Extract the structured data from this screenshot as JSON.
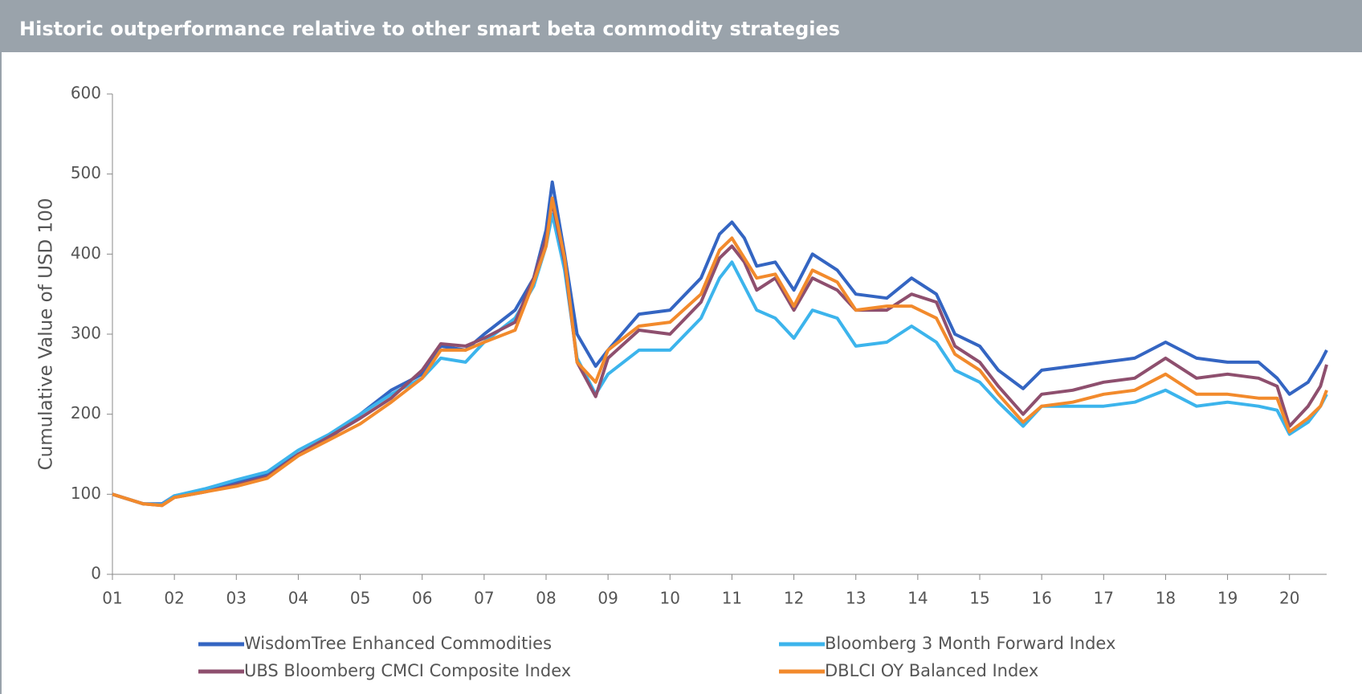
{
  "chart_data": {
    "type": "line",
    "title": "Historic outperformance relative to other smart beta commodity strategies",
    "y_label": "Cumulative Value of USD 100",
    "x": [
      2001.0,
      2001.5,
      2001.8,
      2002.0,
      2002.5,
      2003.0,
      2003.5,
      2004.0,
      2004.5,
      2005.0,
      2005.5,
      2006.0,
      2006.3,
      2006.7,
      2007.0,
      2007.5,
      2007.8,
      2008.0,
      2008.1,
      2008.3,
      2008.5,
      2008.8,
      2009.0,
      2009.5,
      2010.0,
      2010.5,
      2010.8,
      2011.0,
      2011.2,
      2011.4,
      2011.7,
      2012.0,
      2012.3,
      2012.7,
      2013.0,
      2013.5,
      2013.9,
      2014.3,
      2014.6,
      2015.0,
      2015.3,
      2015.7,
      2016.0,
      2016.5,
      2017.0,
      2017.5,
      2018.0,
      2018.5,
      2019.0,
      2019.5,
      2019.8,
      2020.0,
      2020.3,
      2020.5,
      2020.6
    ],
    "series": [
      {
        "name": "WisdomTree Enhanced Commodities",
        "color": "#3465c2",
        "values": [
          100,
          88,
          88,
          98,
          105,
          115,
          125,
          150,
          170,
          200,
          230,
          250,
          285,
          280,
          300,
          330,
          370,
          430,
          490,
          400,
          300,
          260,
          280,
          325,
          330,
          370,
          425,
          440,
          420,
          385,
          390,
          355,
          400,
          380,
          350,
          345,
          370,
          350,
          300,
          285,
          255,
          232,
          255,
          260,
          265,
          270,
          290,
          270,
          265,
          265,
          245,
          225,
          240,
          265,
          280
        ]
      },
      {
        "name": "Bloomberg 3 Month Forward Index",
        "color": "#3cb4ec",
        "values": [
          100,
          88,
          87,
          98,
          107,
          118,
          128,
          155,
          175,
          200,
          225,
          245,
          270,
          265,
          290,
          320,
          360,
          410,
          450,
          380,
          270,
          225,
          250,
          280,
          280,
          320,
          370,
          390,
          360,
          330,
          320,
          295,
          330,
          320,
          285,
          290,
          310,
          290,
          255,
          240,
          215,
          185,
          210,
          210,
          210,
          215,
          230,
          210,
          215,
          210,
          205,
          175,
          190,
          210,
          225
        ]
      },
      {
        "name": "UBS Bloomberg CMCI Composite Index",
        "color": "#8e4f6e",
        "values": [
          100,
          88,
          86,
          96,
          103,
          112,
          122,
          150,
          172,
          195,
          220,
          255,
          288,
          285,
          295,
          315,
          370,
          420,
          465,
          390,
          265,
          222,
          270,
          305,
          300,
          340,
          395,
          410,
          390,
          355,
          370,
          330,
          370,
          355,
          330,
          330,
          350,
          340,
          285,
          265,
          235,
          200,
          225,
          230,
          240,
          245,
          270,
          245,
          250,
          245,
          235,
          185,
          210,
          235,
          262
        ]
      },
      {
        "name": "DBLCI OY Balanced Index",
        "color": "#f28a2c",
        "values": [
          100,
          88,
          86,
          96,
          103,
          110,
          120,
          148,
          168,
          188,
          215,
          245,
          280,
          280,
          290,
          305,
          365,
          410,
          470,
          395,
          265,
          240,
          280,
          310,
          315,
          350,
          405,
          420,
          395,
          370,
          375,
          335,
          380,
          365,
          330,
          335,
          335,
          320,
          275,
          255,
          225,
          190,
          210,
          215,
          225,
          230,
          250,
          225,
          225,
          220,
          220,
          178,
          195,
          210,
          230
        ]
      }
    ],
    "xlim": [
      2001,
      2020.6
    ],
    "xticks": [
      {
        "value": 2001,
        "label": "01"
      },
      {
        "value": 2002,
        "label": "02"
      },
      {
        "value": 2003,
        "label": "03"
      },
      {
        "value": 2004,
        "label": "04"
      },
      {
        "value": 2005,
        "label": "05"
      },
      {
        "value": 2006,
        "label": "06"
      },
      {
        "value": 2007,
        "label": "07"
      },
      {
        "value": 2008,
        "label": "08"
      },
      {
        "value": 2009,
        "label": "09"
      },
      {
        "value": 2010,
        "label": "10"
      },
      {
        "value": 2011,
        "label": "11"
      },
      {
        "value": 2012,
        "label": "12"
      },
      {
        "value": 2013,
        "label": "13"
      },
      {
        "value": 2014,
        "label": "14"
      },
      {
        "value": 2015,
        "label": "15"
      },
      {
        "value": 2016,
        "label": "16"
      },
      {
        "value": 2017,
        "label": "17"
      },
      {
        "value": 2018,
        "label": "18"
      },
      {
        "value": 2019,
        "label": "19"
      },
      {
        "value": 2020,
        "label": "20"
      }
    ],
    "ylim": [
      0,
      600
    ],
    "yticks": [
      0,
      100,
      200,
      300,
      400,
      500,
      600
    ],
    "grid": false
  }
}
